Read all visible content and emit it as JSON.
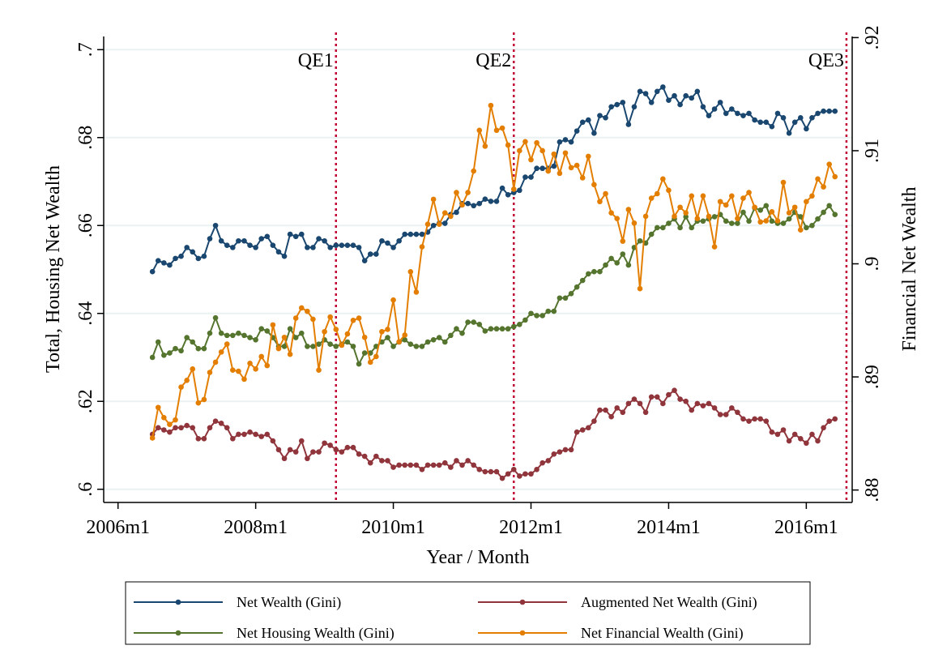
{
  "chart_data": {
    "type": "line",
    "xlabel": "Year / Month",
    "ylabel": "Total, Housing Net Wealth",
    "y2label": "Financial Net Wealth",
    "xlim": [
      549.5,
      680
    ],
    "xticks": [
      {
        "value": 552,
        "label": "2006m1"
      },
      {
        "value": 576,
        "label": "2008m1"
      },
      {
        "value": 600,
        "label": "2010m1"
      },
      {
        "value": 624,
        "label": "2012m1"
      },
      {
        "value": 648,
        "label": "2014m1"
      },
      {
        "value": 672,
        "label": "2016m1"
      }
    ],
    "ylim": [
      0.597,
      0.703
    ],
    "yticks": [
      {
        "value": 0.6,
        "label": ".6"
      },
      {
        "value": 0.62,
        "label": ".62"
      },
      {
        "value": 0.64,
        "label": ".64"
      },
      {
        "value": 0.66,
        "label": ".66"
      },
      {
        "value": 0.68,
        "label": ".68"
      },
      {
        "value": 0.7,
        "label": ".7"
      }
    ],
    "y2lim": [
      0.8789,
      0.9201
    ],
    "y2ticks": [
      {
        "value": 0.88,
        "label": ".88"
      },
      {
        "value": 0.89,
        "label": ".89"
      },
      {
        "value": 0.9,
        "label": ".9"
      },
      {
        "value": 0.91,
        "label": ".91"
      },
      {
        "value": 0.92,
        "label": ".92"
      }
    ],
    "grid": true,
    "annotations": [
      {
        "text": "QE1",
        "x": 590
      },
      {
        "text": "QE2",
        "x": 621
      },
      {
        "text": "QE3",
        "x": 679
      }
    ],
    "x": [
      558,
      559,
      560,
      561,
      562,
      563,
      564,
      565,
      566,
      567,
      568,
      569,
      570,
      571,
      572,
      573,
      574,
      575,
      576,
      577,
      578,
      579,
      580,
      581,
      582,
      583,
      584,
      585,
      586,
      587,
      588,
      589,
      590,
      591,
      592,
      593,
      594,
      595,
      596,
      597,
      598,
      599,
      600,
      601,
      602,
      603,
      604,
      605,
      606,
      607,
      608,
      609,
      610,
      611,
      612,
      613,
      614,
      615,
      616,
      617,
      618,
      619,
      620,
      621,
      622,
      623,
      624,
      625,
      626,
      627,
      628,
      629,
      630,
      631,
      632,
      633,
      634,
      635,
      636,
      637,
      638,
      639,
      640,
      641,
      642,
      643,
      644,
      645,
      646,
      647,
      648,
      649,
      650,
      651,
      652,
      653,
      654,
      655,
      656,
      657,
      658,
      659,
      660,
      661,
      662,
      663,
      664,
      665,
      666,
      667,
      668,
      669,
      670,
      671,
      672,
      673,
      674,
      675,
      676,
      677
    ],
    "series": [
      {
        "name": "Net Wealth (Gini)",
        "color": "#1a476f",
        "values": [
          0.6495,
          0.652,
          0.6515,
          0.651,
          0.6525,
          0.653,
          0.655,
          0.654,
          0.6525,
          0.653,
          0.657,
          0.66,
          0.6565,
          0.6555,
          0.655,
          0.6565,
          0.6565,
          0.6555,
          0.655,
          0.657,
          0.6575,
          0.6555,
          0.654,
          0.653,
          0.658,
          0.6575,
          0.658,
          0.655,
          0.655,
          0.657,
          0.6565,
          0.655,
          0.6555,
          0.6555,
          0.6555,
          0.6555,
          0.655,
          0.652,
          0.6535,
          0.6535,
          0.6565,
          0.656,
          0.655,
          0.6565,
          0.658,
          0.658,
          0.658,
          0.658,
          0.6585,
          0.66,
          0.6605,
          0.6605,
          0.6625,
          0.663,
          0.665,
          0.665,
          0.6645,
          0.665,
          0.666,
          0.6655,
          0.6655,
          0.6685,
          0.667,
          0.6675,
          0.668,
          0.671,
          0.671,
          0.673,
          0.673,
          0.673,
          0.6735,
          0.679,
          0.6795,
          0.679,
          0.6815,
          0.6835,
          0.684,
          0.681,
          0.685,
          0.6845,
          0.687,
          0.6875,
          0.688,
          0.683,
          0.687,
          0.6905,
          0.69,
          0.688,
          0.6905,
          0.6915,
          0.6885,
          0.6895,
          0.6875,
          0.6895,
          0.689,
          0.6905,
          0.687,
          0.685,
          0.6865,
          0.688,
          0.6855,
          0.6865,
          0.6855,
          0.685,
          0.6855,
          0.684,
          0.6835,
          0.6835,
          0.6825,
          0.6855,
          0.6845,
          0.681,
          0.6835,
          0.6845,
          0.682,
          0.6845,
          0.6855,
          0.686,
          0.686,
          0.686
        ]
      },
      {
        "name": "Augmented  Net Wealth (Gini)",
        "color": "#90353b",
        "values": [
          0.6125,
          0.614,
          0.6135,
          0.613,
          0.614,
          0.614,
          0.6145,
          0.614,
          0.6115,
          0.6115,
          0.614,
          0.6155,
          0.615,
          0.614,
          0.6115,
          0.6125,
          0.6125,
          0.613,
          0.6125,
          0.612,
          0.6125,
          0.611,
          0.609,
          0.607,
          0.609,
          0.6085,
          0.611,
          0.607,
          0.6085,
          0.6085,
          0.6105,
          0.61,
          0.609,
          0.6085,
          0.6095,
          0.6095,
          0.608,
          0.6075,
          0.606,
          0.6075,
          0.6065,
          0.6065,
          0.605,
          0.6055,
          0.6055,
          0.6055,
          0.6055,
          0.6045,
          0.6055,
          0.6055,
          0.6055,
          0.606,
          0.605,
          0.6065,
          0.6055,
          0.6065,
          0.6055,
          0.6045,
          0.604,
          0.604,
          0.604,
          0.6025,
          0.6035,
          0.6045,
          0.603,
          0.6035,
          0.6035,
          0.6045,
          0.606,
          0.6065,
          0.608,
          0.6085,
          0.609,
          0.609,
          0.613,
          0.6135,
          0.614,
          0.6155,
          0.618,
          0.618,
          0.6165,
          0.6185,
          0.6175,
          0.6195,
          0.6205,
          0.6195,
          0.6175,
          0.621,
          0.621,
          0.6195,
          0.6215,
          0.6225,
          0.6205,
          0.62,
          0.618,
          0.6195,
          0.619,
          0.6195,
          0.6185,
          0.617,
          0.617,
          0.6185,
          0.6175,
          0.616,
          0.6155,
          0.616,
          0.616,
          0.6155,
          0.613,
          0.6125,
          0.6135,
          0.611,
          0.6125,
          0.6115,
          0.6105,
          0.6125,
          0.611,
          0.614,
          0.6155,
          0.616
        ]
      },
      {
        "name": "Net Housing Wealth (Gini)",
        "color": "#55752f",
        "values": [
          0.63,
          0.6335,
          0.6305,
          0.631,
          0.632,
          0.6315,
          0.6345,
          0.6335,
          0.632,
          0.632,
          0.6355,
          0.639,
          0.6355,
          0.635,
          0.635,
          0.6355,
          0.635,
          0.6345,
          0.634,
          0.6365,
          0.636,
          0.6345,
          0.6325,
          0.6325,
          0.6365,
          0.6345,
          0.6355,
          0.6325,
          0.6325,
          0.633,
          0.634,
          0.633,
          0.6325,
          0.633,
          0.6335,
          0.6325,
          0.6285,
          0.631,
          0.631,
          0.6325,
          0.6335,
          0.6345,
          0.6325,
          0.6335,
          0.634,
          0.633,
          0.6325,
          0.6325,
          0.6335,
          0.634,
          0.6345,
          0.6335,
          0.635,
          0.6365,
          0.6355,
          0.638,
          0.638,
          0.6375,
          0.636,
          0.6365,
          0.6365,
          0.6365,
          0.6365,
          0.637,
          0.6375,
          0.6385,
          0.64,
          0.6395,
          0.6395,
          0.6405,
          0.6405,
          0.6435,
          0.6435,
          0.6445,
          0.646,
          0.6475,
          0.649,
          0.6495,
          0.6495,
          0.651,
          0.6525,
          0.6515,
          0.6535,
          0.651,
          0.655,
          0.6565,
          0.656,
          0.658,
          0.6595,
          0.6595,
          0.6605,
          0.6615,
          0.6595,
          0.662,
          0.6595,
          0.661,
          0.661,
          0.6615,
          0.662,
          0.6625,
          0.661,
          0.6605,
          0.6605,
          0.663,
          0.661,
          0.664,
          0.6635,
          0.6645,
          0.661,
          0.6605,
          0.6605,
          0.6615,
          0.663,
          0.662,
          0.6595,
          0.66,
          0.6615,
          0.663,
          0.6645,
          0.6625
        ]
      },
      {
        "name": "Net Financial Wealth (Gini)",
        "color": "#e37e00",
        "axis": "y2",
        "values": [
          0.8846,
          0.8873,
          0.8864,
          0.8858,
          0.8862,
          0.8891,
          0.8897,
          0.8907,
          0.8877,
          0.888,
          0.8904,
          0.8913,
          0.8922,
          0.8929,
          0.8906,
          0.8905,
          0.8898,
          0.8912,
          0.8907,
          0.8918,
          0.891,
          0.8946,
          0.8925,
          0.8935,
          0.892,
          0.8952,
          0.8961,
          0.8958,
          0.8951,
          0.8906,
          0.894,
          0.8953,
          0.8942,
          0.8928,
          0.8938,
          0.895,
          0.8952,
          0.8935,
          0.8913,
          0.8918,
          0.894,
          0.8942,
          0.8968,
          0.8931,
          0.8937,
          0.8993,
          0.8975,
          0.9015,
          0.9035,
          0.9057,
          0.9035,
          0.9045,
          0.9042,
          0.9063,
          0.9052,
          0.9063,
          0.9082,
          0.9118,
          0.9104,
          0.914,
          0.9118,
          0.912,
          0.9105,
          0.9066,
          0.91,
          0.9108,
          0.9092,
          0.9107,
          0.91,
          0.9082,
          0.9097,
          0.908,
          0.9098,
          0.9085,
          0.9087,
          0.9076,
          0.9095,
          0.907,
          0.9055,
          0.9062,
          0.9045,
          0.904,
          0.902,
          0.9048,
          0.9036,
          0.8978,
          0.9042,
          0.9058,
          0.9062,
          0.9075,
          0.9065,
          0.9042,
          0.905,
          0.9045,
          0.906,
          0.904,
          0.906,
          0.9042,
          0.9015,
          0.9055,
          0.9052,
          0.906,
          0.904,
          0.9058,
          0.9063,
          0.905,
          0.9037,
          0.9038,
          0.9046,
          0.9038,
          0.9072,
          0.9045,
          0.905,
          0.903,
          0.9055,
          0.906,
          0.9075,
          0.9068,
          0.9088,
          0.9077
        ]
      }
    ]
  }
}
